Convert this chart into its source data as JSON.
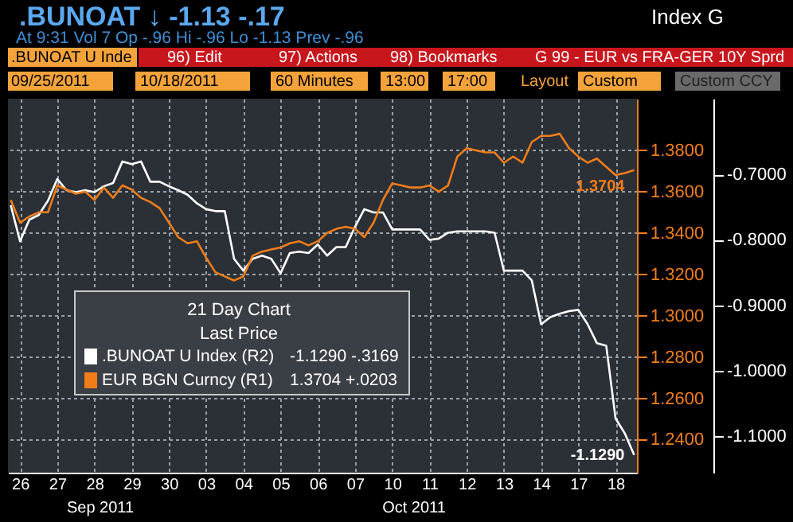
{
  "chart_data": {
    "type": "line",
    "title": ".BUNOAT ↓  -1.13  -.17",
    "subtitle": "At 9:31 Vol 7 Op -.96  Hi -.96  Lo -1.13  Prev -.96",
    "legend_title": "21 Day Chart",
    "categories": [
      null,
      "26",
      null,
      null,
      null,
      "27",
      null,
      null,
      null,
      "28",
      null,
      null,
      null,
      "29",
      null,
      null,
      null,
      "30",
      null,
      null,
      null,
      "03",
      null,
      null,
      null,
      "04",
      null,
      null,
      null,
      "05",
      null,
      null,
      null,
      "06",
      null,
      null,
      null,
      "07",
      null,
      null,
      null,
      "10",
      null,
      null,
      null,
      "11",
      null,
      null,
      null,
      "12",
      null,
      null,
      null,
      "13",
      null,
      null,
      null,
      "14",
      null,
      null,
      null,
      "17",
      null,
      null,
      null,
      "18",
      null,
      null
    ],
    "series": [
      {
        "name": ".BUNOAT U Index  (R2)",
        "color": "#ffffff",
        "axis": "y2",
        "values": [
          -0.747,
          -0.802,
          -0.769,
          -0.762,
          -0.74,
          -0.707,
          -0.724,
          -0.727,
          -0.724,
          -0.727,
          -0.718,
          -0.713,
          -0.68,
          -0.684,
          -0.68,
          -0.711,
          -0.711,
          -0.718,
          -0.724,
          -0.731,
          -0.744,
          -0.753,
          -0.756,
          -0.756,
          -0.829,
          -0.847,
          -0.829,
          -0.824,
          -0.829,
          -0.851,
          -0.82,
          -0.818,
          -0.82,
          -0.807,
          -0.824,
          -0.811,
          -0.811,
          -0.78,
          -0.753,
          -0.758,
          -0.758,
          -0.784,
          -0.784,
          -0.784,
          -0.784,
          -0.8,
          -0.798,
          -0.789,
          -0.787,
          -0.787,
          -0.787,
          -0.787,
          -0.789,
          -0.847,
          -0.847,
          -0.847,
          -0.862,
          -0.929,
          -0.918,
          -0.913,
          -0.909,
          -0.907,
          -0.929,
          -0.958,
          -0.962,
          -1.073,
          -1.096,
          -1.129
        ],
        "value_labels": [
          null,
          null,
          null,
          null,
          null,
          null,
          null,
          null,
          null,
          null,
          null,
          null,
          null,
          null,
          null,
          null,
          null,
          null,
          null,
          null,
          null,
          null,
          null,
          null,
          null,
          null,
          null,
          null,
          null,
          null,
          null,
          null,
          null,
          null,
          null,
          null,
          null,
          null,
          null,
          null,
          null,
          null,
          null,
          null,
          null,
          null,
          null,
          null,
          null,
          null,
          null,
          null,
          null,
          null,
          null,
          null,
          null,
          null,
          null,
          null,
          null,
          null,
          null,
          null,
          null,
          null,
          null,
          "-1.1290"
        ]
      },
      {
        "name": "EUR BGN Curncy  (R1)",
        "color": "#f07d1a",
        "values": [
          1.356,
          1.345,
          1.348,
          1.35,
          1.35,
          1.363,
          1.361,
          1.359,
          1.36,
          1.356,
          1.362,
          1.357,
          1.363,
          1.361,
          1.357,
          1.355,
          1.352,
          1.345,
          1.338,
          1.335,
          1.336,
          1.328,
          1.321,
          1.319,
          1.317,
          1.319,
          1.329,
          1.331,
          1.332,
          1.333,
          1.335,
          1.336,
          1.334,
          1.336,
          1.34,
          1.342,
          1.343,
          1.342,
          1.338,
          1.345,
          1.356,
          1.364,
          1.363,
          1.362,
          1.362,
          1.363,
          1.36,
          1.363,
          1.377,
          1.381,
          1.38,
          1.379,
          1.379,
          1.374,
          1.377,
          1.374,
          1.384,
          1.387,
          1.387,
          1.388,
          1.381,
          1.377,
          1.374,
          1.376,
          1.372,
          1.368,
          1.369,
          1.3704
        ],
        "value_labels": [
          null,
          null,
          null,
          null,
          null,
          null,
          null,
          null,
          null,
          null,
          null,
          null,
          null,
          null,
          null,
          null,
          null,
          null,
          null,
          null,
          null,
          null,
          null,
          null,
          null,
          null,
          null,
          null,
          null,
          null,
          null,
          null,
          null,
          null,
          null,
          null,
          null,
          null,
          null,
          null,
          null,
          null,
          null,
          null,
          null,
          null,
          null,
          null,
          null,
          null,
          null,
          null,
          null,
          null,
          null,
          null,
          null,
          null,
          null,
          null,
          null,
          null,
          null,
          null,
          null,
          null,
          null,
          "1.3704"
        ]
      }
    ],
    "ylim": [
      1.224,
      1.405
    ],
    "yticks": [
      {
        "value": 1.24,
        "label": "1.2400"
      },
      {
        "value": 1.26,
        "label": "1.2600"
      },
      {
        "value": 1.28,
        "label": "1.2800"
      },
      {
        "value": 1.3,
        "label": "1.3000"
      },
      {
        "value": 1.32,
        "label": "1.3200"
      },
      {
        "value": 1.34,
        "label": "1.3400"
      },
      {
        "value": 1.36,
        "label": "1.3600"
      },
      {
        "value": 1.38,
        "label": "1.3800"
      }
    ],
    "y2lim": [
      -1.156,
      -0.584
    ],
    "y2ticks": [
      {
        "value": -1.1,
        "label": "-1.1000"
      },
      {
        "value": -1.0,
        "label": "-1.0000"
      },
      {
        "value": -0.9,
        "label": "-0.9000"
      },
      {
        "value": -0.8,
        "label": "-0.8000"
      },
      {
        "value": -0.7,
        "label": "-0.7000"
      }
    ],
    "grid": true,
    "legend": "left",
    "line_style": "solid",
    "marker": "none",
    "annotations": [
      ".BUNOAT U Inde",
      "96) Edit",
      "97) Actions",
      "98) Bookmarks",
      "G 99 - EUR vs FRA-GER 10Y Sprd",
      "09/25/2011",
      "10/18/2011",
      "60 Minutes",
      "13:00",
      "17:00",
      "Layout",
      "Custom",
      "Custom CCY",
      "Index G",
      "Last Price",
      "-1.1290   -.3169",
      "1.3704   +.0203",
      "Sep 2011",
      "Oct 2011"
    ]
  }
}
